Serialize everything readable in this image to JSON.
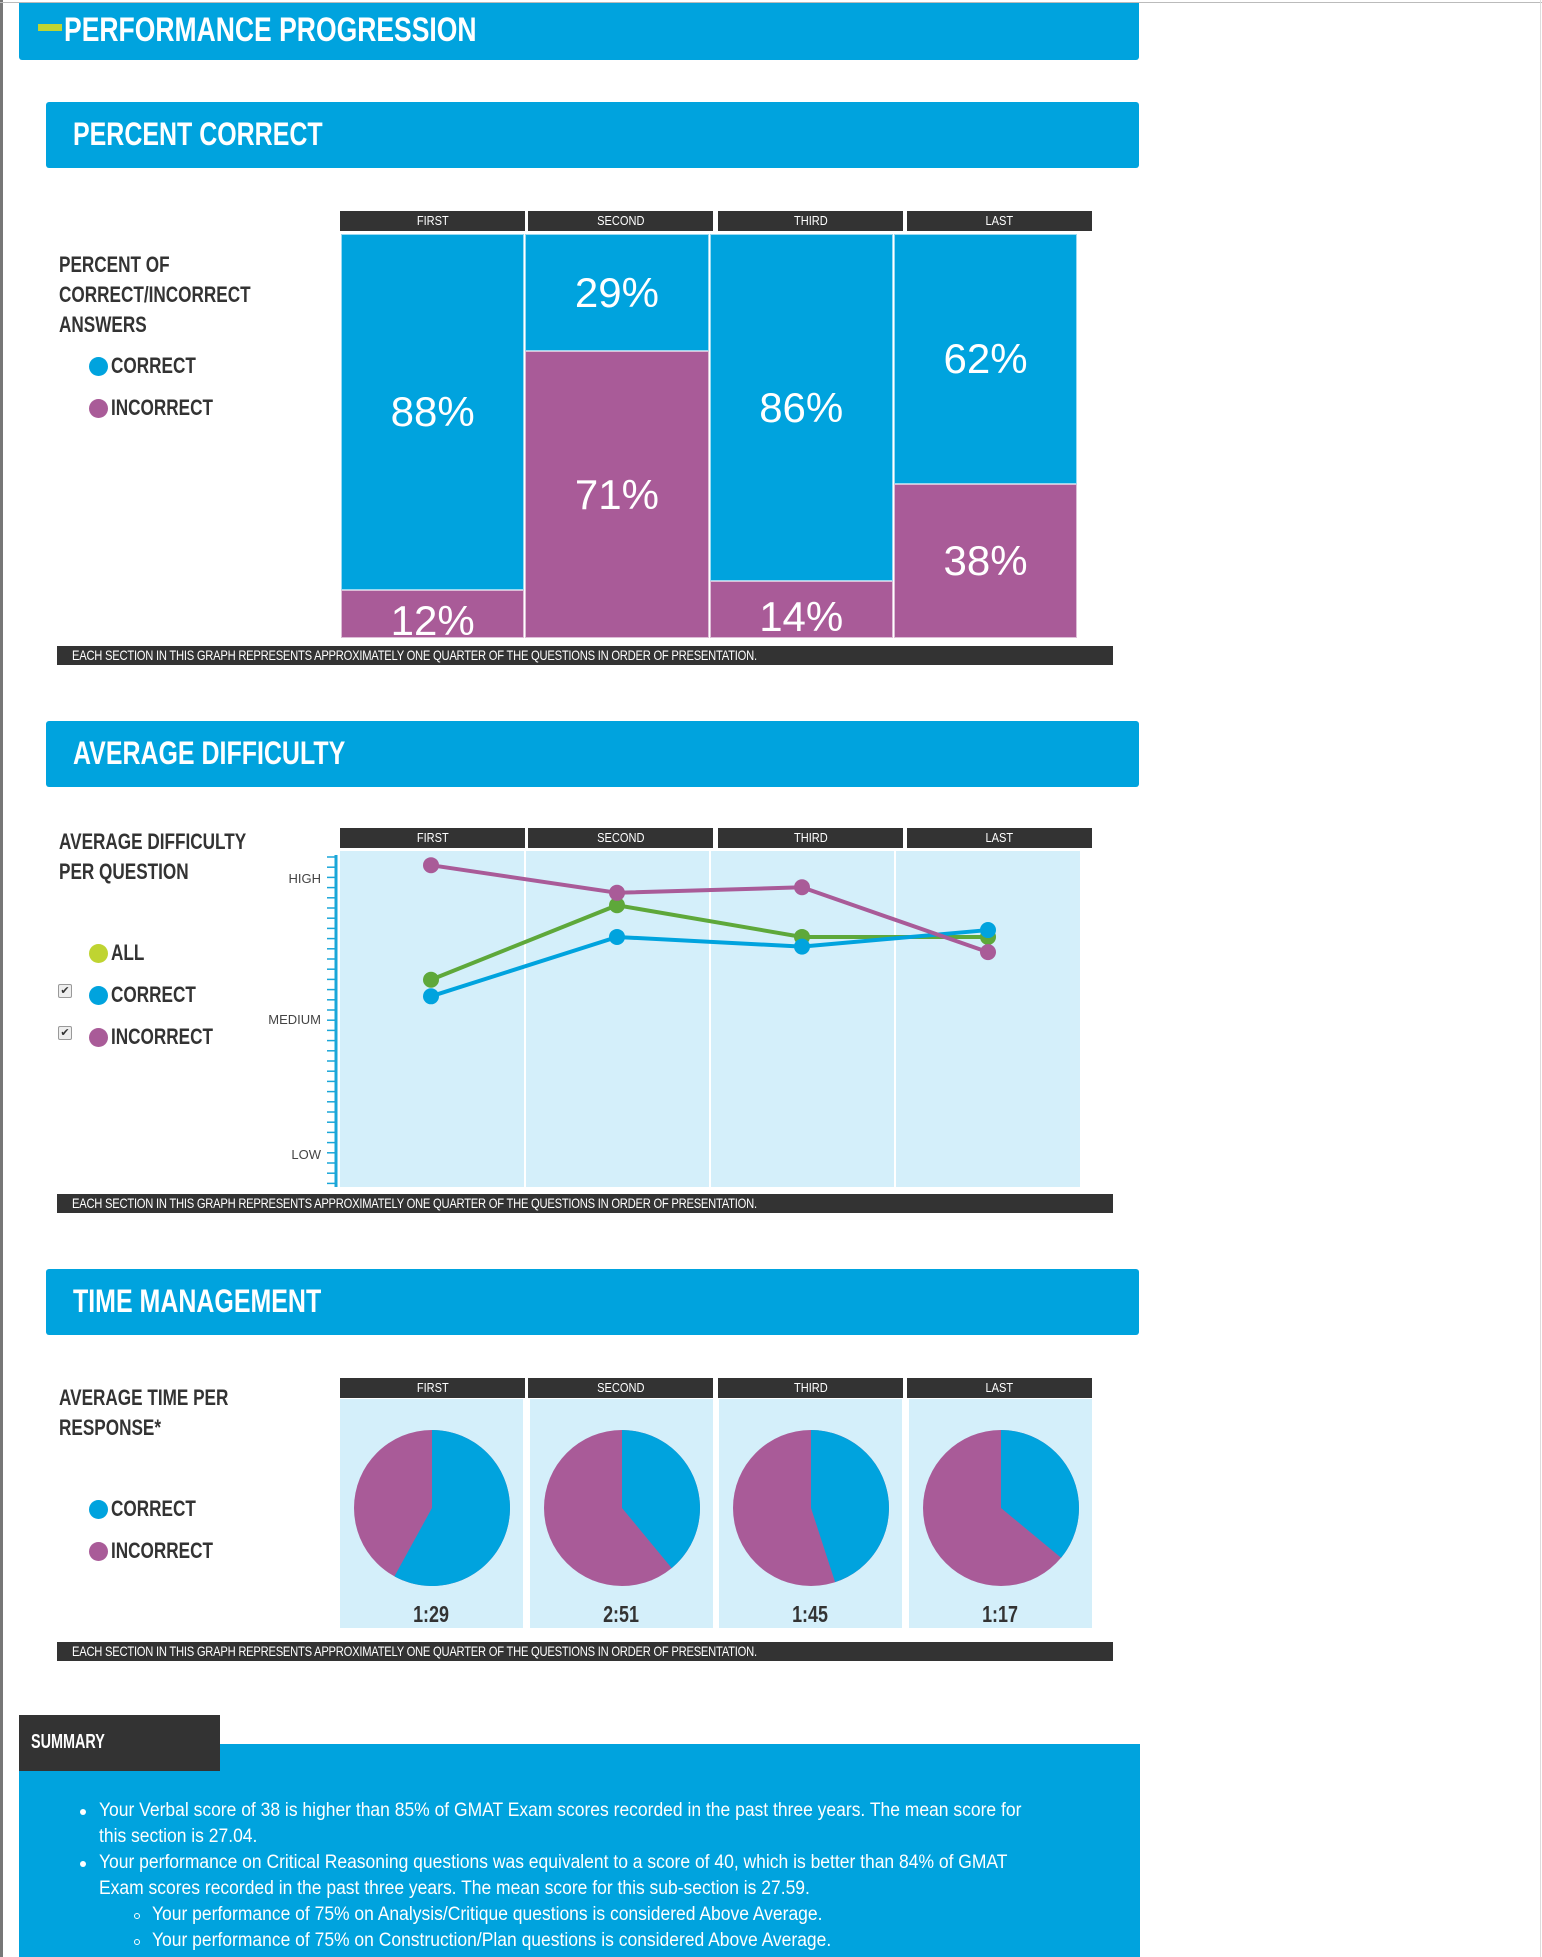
{
  "header": {
    "title": "PERFORMANCE PROGRESSION"
  },
  "colors": {
    "correct": "#00a3de",
    "incorrect": "#a95b98",
    "all_legend": "#bfd431",
    "all_line": "#5ea83a",
    "panel": "#d4effa",
    "dark": "#333333"
  },
  "columns": [
    "FIRST",
    "SECOND",
    "THIRD",
    "LAST"
  ],
  "note": "EACH SECTION IN THIS GRAPH REPRESENTS APPROXIMATELY ONE QUARTER OF THE QUESTIONS IN ORDER OF PRESENTATION.",
  "percent_correct": {
    "title": "PERCENT CORRECT",
    "label_lines": [
      "PERCENT OF",
      "CORRECT/INCORRECT",
      "ANSWERS"
    ],
    "legend": {
      "correct": "CORRECT",
      "incorrect": "INCORRECT"
    }
  },
  "average_difficulty": {
    "title": "AVERAGE DIFFICULTY",
    "label_lines": [
      "AVERAGE DIFFICULTY",
      "PER QUESTION"
    ],
    "legend": {
      "all": "ALL",
      "correct": "CORRECT",
      "incorrect": "INCORRECT",
      "correct_checked": true,
      "incorrect_checked": true
    },
    "y_ticks": [
      "LOW",
      "MEDIUM",
      "HIGH"
    ]
  },
  "time_management": {
    "title": "TIME MANAGEMENT",
    "label_lines": [
      "AVERAGE TIME PER",
      "RESPONSE*"
    ],
    "legend": {
      "correct": "CORRECT",
      "incorrect": "INCORRECT"
    }
  },
  "chart_data": [
    {
      "type": "bar",
      "stacked": true,
      "categories": [
        "FIRST",
        "SECOND",
        "THIRD",
        "LAST"
      ],
      "series": [
        {
          "name": "CORRECT",
          "values": [
            88,
            29,
            86,
            62
          ],
          "labels": [
            "88%",
            "29%",
            "86%",
            "62%"
          ]
        },
        {
          "name": "INCORRECT",
          "values": [
            12,
            71,
            14,
            38
          ],
          "labels": [
            "12%",
            "71%",
            "14%",
            "38%"
          ]
        }
      ],
      "ylim": [
        0,
        100
      ]
    },
    {
      "type": "line",
      "categories": [
        "FIRST",
        "SECOND",
        "THIRD",
        "LAST"
      ],
      "y_scale": {
        "LOW": 0,
        "MEDIUM": 1,
        "HIGH": 2
      },
      "series": [
        {
          "name": "ALL",
          "values": [
            1.27,
            1.81,
            1.58,
            1.58
          ]
        },
        {
          "name": "CORRECT",
          "values": [
            1.15,
            1.58,
            1.51,
            1.63
          ]
        },
        {
          "name": "INCORRECT",
          "values": [
            2.1,
            1.9,
            1.94,
            1.47
          ]
        }
      ],
      "grid": false
    },
    {
      "type": "pie",
      "categories": [
        "FIRST",
        "SECOND",
        "THIRD",
        "LAST"
      ],
      "correct_fraction": [
        0.58,
        0.39,
        0.45,
        0.36
      ],
      "time_labels": [
        "1:29",
        "2:51",
        "1:45",
        "1:17"
      ]
    }
  ],
  "summary": {
    "tab": "SUMMARY",
    "lines": [
      {
        "text": "Your Verbal score of 38 is higher than 85% of GMAT Exam scores recorded in the past three years. The mean score for",
        "bullet": "disc"
      },
      {
        "text": "this section is 27.04.",
        "bullet": "none"
      },
      {
        "text": "Your performance on Critical Reasoning questions was equivalent to a score of 40, which is better than 84% of GMAT",
        "bullet": "disc"
      },
      {
        "text": "Exam scores recorded in the past three years. The mean score for this sub-section is 27.59.",
        "bullet": "none"
      },
      {
        "text": "Your performance of 75% on Analysis/Critique questions is considered Above Average.",
        "bullet": "circle"
      },
      {
        "text": "Your performance of 75% on Construction/Plan questions is considered Above Average.",
        "bullet": "circle"
      }
    ]
  }
}
